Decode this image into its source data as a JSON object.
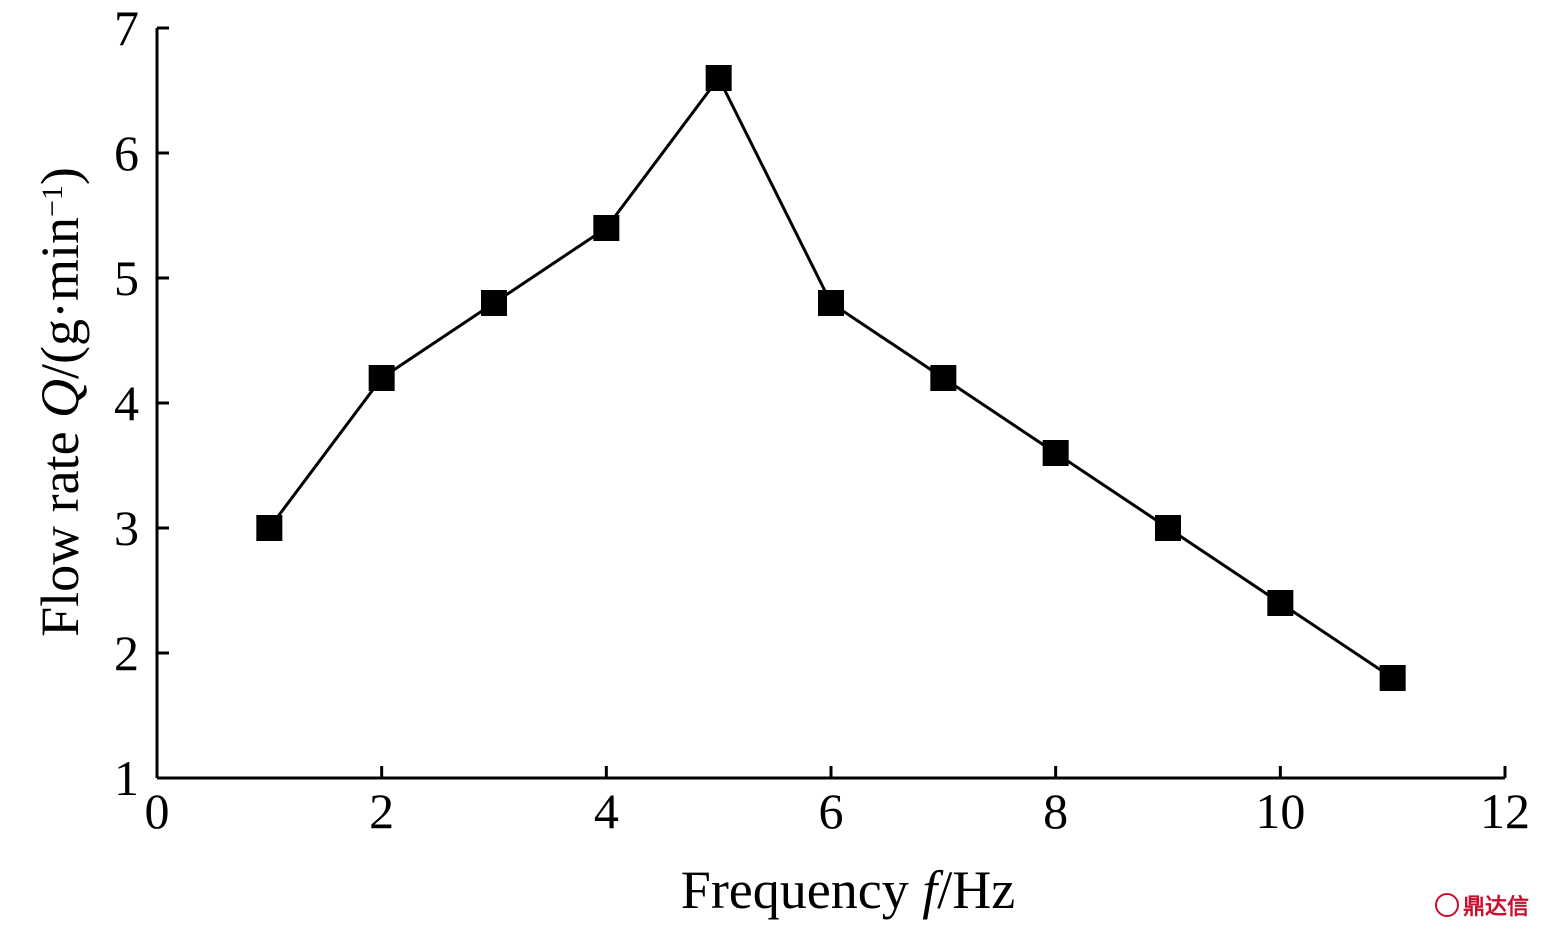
{
  "chart_data": {
    "type": "line",
    "title": "",
    "xlabel": {
      "prefix": "Frequency ",
      "var": "f",
      "suffix": "/Hz"
    },
    "ylabel": {
      "prefix": "Flow rate ",
      "var": "Q",
      "unit": "/(g·min",
      "exp": "−1",
      "close": ")"
    },
    "xlim": [
      0,
      12
    ],
    "ylim": [
      1,
      7
    ],
    "xticks": [
      "0",
      "2",
      "4",
      "6",
      "8",
      "10",
      "12"
    ],
    "yticks": [
      "1",
      "2",
      "3",
      "4",
      "5",
      "6",
      "7"
    ],
    "grid": false,
    "series": [
      {
        "marker": "square",
        "color": "#000000",
        "x": [
          1,
          2,
          3,
          4,
          5,
          6,
          7,
          8,
          9,
          10,
          11
        ],
        "y": [
          3.0,
          4.2,
          4.8,
          5.4,
          6.6,
          4.8,
          4.2,
          3.6,
          3.0,
          2.4,
          1.8
        ]
      }
    ]
  },
  "watermark": {
    "text": "鼎达信",
    "color": "#c8102e"
  }
}
